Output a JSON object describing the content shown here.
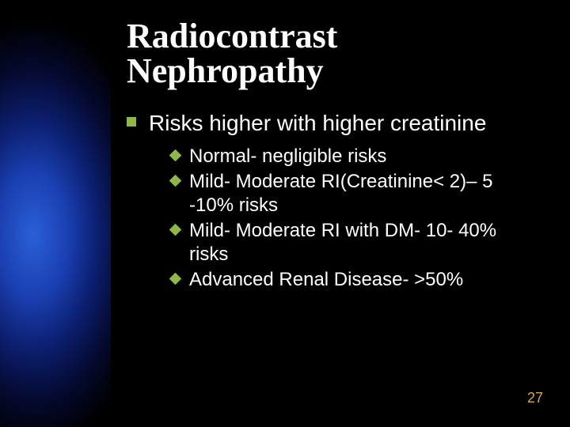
{
  "slide": {
    "title_line1": "Radiocontrast",
    "title_line2": "Nephropathy",
    "title_fontsize": 44,
    "title_color": "#ffffff",
    "level1_text": "Risks higher with higher creatinine",
    "level1_fontsize": 28,
    "level2_items": [
      "Normal-   negligible risks",
      "Mild- Moderate RI(Creatinine< 2)– 5 -10% risks",
      "Mild- Moderate RI with DM-  10- 40% risks",
      "Advanced Renal Disease- >50%"
    ],
    "level2_fontsize": 24,
    "bullet_color": "#8fb84a",
    "text_color": "#ffffff",
    "page_number": "27",
    "page_number_color": "#d4a84a",
    "page_number_fontsize": 18,
    "background_color": "#000000",
    "gradient_colors": [
      "#2a5fd8",
      "#1a3fb0",
      "#0c1f70",
      "#050a30",
      "#000000"
    ]
  }
}
